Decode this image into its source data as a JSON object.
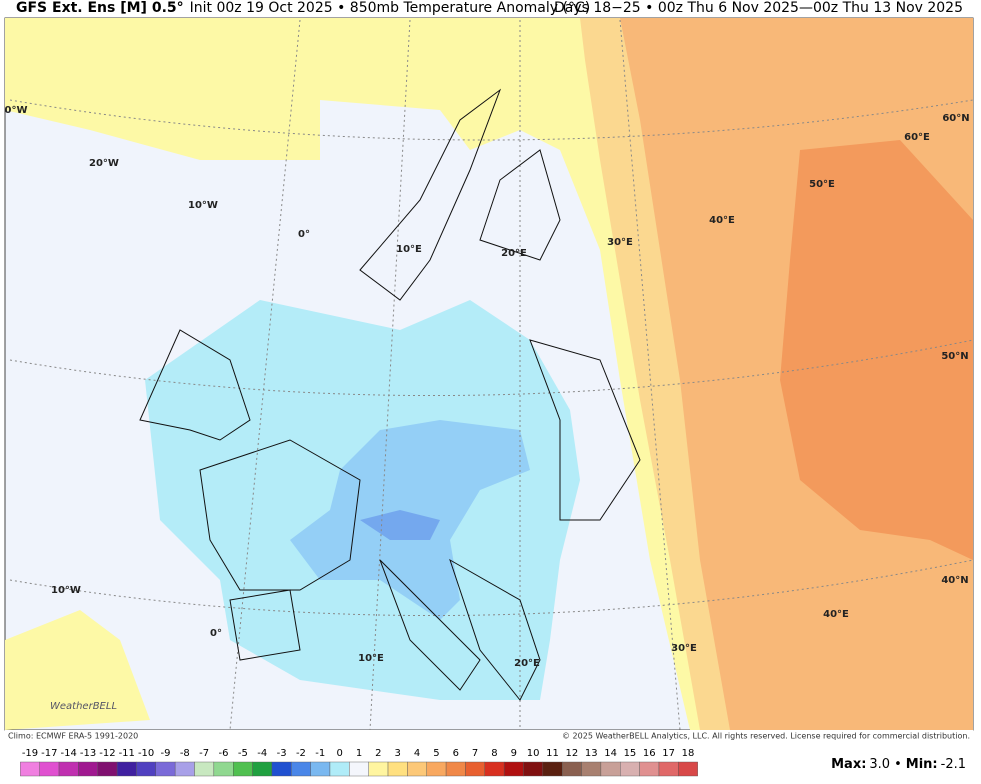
{
  "header": {
    "model": "GFS Ext. Ens [M] 0.5°",
    "init": "Init 00z 19 Oct 2025 • 850mb Temperature Anomaly (°C)",
    "valid": "Days 18−25 • 00z Thu 6 Nov 2025—00z Thu 13 Nov 2025"
  },
  "map": {
    "grid_labels": [
      {
        "text": "0°W"
      },
      {
        "text": "20°W"
      },
      {
        "text": "10°W"
      },
      {
        "text": "0°"
      },
      {
        "text": "10°E"
      },
      {
        "text": "20°E"
      },
      {
        "text": "30°E"
      },
      {
        "text": "40°E"
      },
      {
        "text": "50°E"
      },
      {
        "text": "60°E"
      },
      {
        "text": "60°N"
      },
      {
        "text": "50°N"
      },
      {
        "text": "40°N"
      },
      {
        "text": "10°W"
      },
      {
        "text": "0°"
      },
      {
        "text": "10°E"
      },
      {
        "text": "20°E"
      },
      {
        "text": "30°E"
      },
      {
        "text": "40°E"
      }
    ],
    "logo": "WeatherBELL"
  },
  "footer": {
    "climo": "Climo: ECMWF ERA-5 1991-2020",
    "copyright": "© 2025 WeatherBELL Analytics, LLC. All rights reserved. License required for commercial distribution.",
    "stats": [
      {
        "label": "Max:",
        "value": "3.0"
      },
      {
        "label": "Min:",
        "value": "-2.1"
      }
    ],
    "separator": "•"
  },
  "colorbar": {
    "ticks": [
      -19,
      -17,
      -14,
      -13,
      -12,
      -11,
      -10,
      -9,
      -8,
      -7,
      -6,
      -5,
      -4,
      -3,
      -2,
      -1,
      0,
      1,
      2,
      3,
      4,
      5,
      6,
      7,
      8,
      9,
      10,
      11,
      12,
      13,
      14,
      15,
      16,
      17,
      18
    ],
    "colors": [
      "#f07fe0",
      "#e050d0",
      "#c030b0",
      "#a01890",
      "#801070",
      "#4020a0",
      "#5040c0",
      "#7a6ad8",
      "#a8a0e8",
      "#c8e8c0",
      "#90d890",
      "#50c050",
      "#20a040",
      "#2050d0",
      "#4a86e8",
      "#7ab8f0",
      "#b0ecf8",
      "#f4f6fc",
      "#fff5a0",
      "#ffe080",
      "#fcc878",
      "#f8a860",
      "#f08848",
      "#e86030",
      "#d83020",
      "#b01010",
      "#801010",
      "#5a2010",
      "#8a6050",
      "#a88070",
      "#c8a098",
      "#d8b0b0",
      "#e09090",
      "#e06868",
      "#d84848"
    ]
  }
}
